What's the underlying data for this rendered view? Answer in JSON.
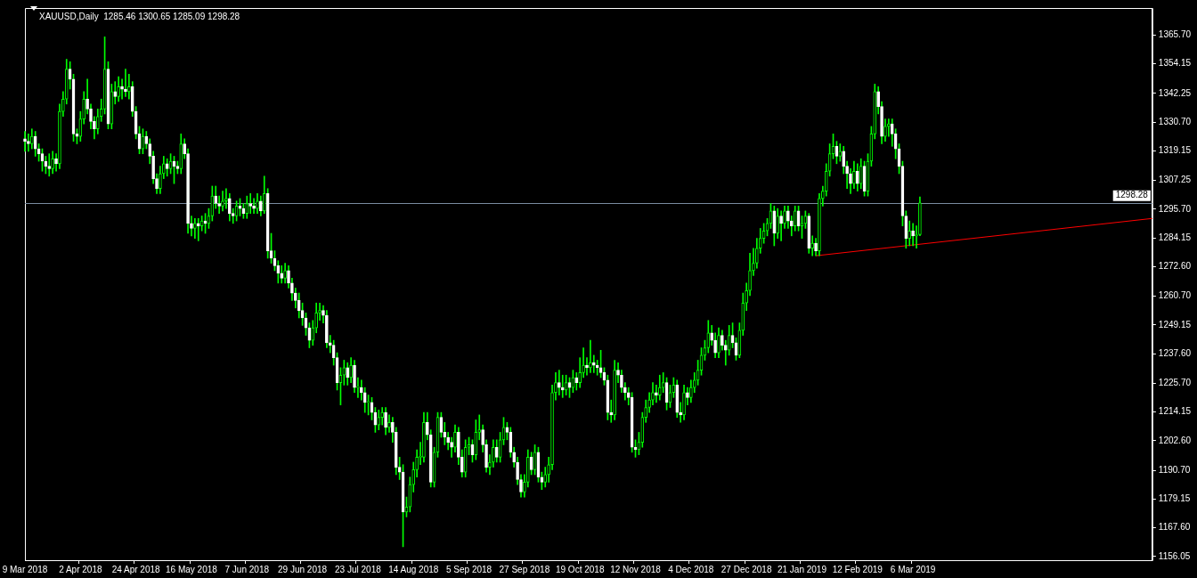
{
  "chart_data": {
    "type": "candlestick",
    "title": "XAUUSD,Daily  1285.46 1300.65 1285.09 1298.28",
    "color": "#00ff00",
    "colors": [
      "#ffffff",
      "#ffffff",
      "#00ff00",
      "#ffffff",
      "#ffffff",
      "#ffffff",
      "#ffffff",
      "#ffffff",
      "#00ff00",
      "#ffffff",
      "#00ff00",
      "#00ff00",
      "#00ff00",
      "#ffffff",
      "#ffffff",
      "#ffffff",
      "#00ff00",
      "#00ff00",
      "#ffffff",
      "#ffffff",
      "#ffffff",
      "#00ff00",
      "#00ff00",
      "#00ff00",
      "#ffffff",
      "#00ff00",
      "#ffffff",
      "#00ff00",
      "#ffffff",
      "#ffffff",
      "#00ff00",
      "#ffffff",
      "#ffffff",
      "#ffffff",
      "#00ff00",
      "#ffffff",
      "#ffffff",
      "#ffffff",
      "#ffffff",
      "#00ff00",
      "#00ff00",
      "#ffffff",
      "#00ff00",
      "#ffffff",
      "#ffffff",
      "#00ff00",
      "#ffffff",
      "#ffffff",
      "#ffffff",
      "#00ff00",
      "#ffffff",
      "#00ff00",
      "#ffffff",
      "#00ff00",
      "#00ff00",
      "#ffffff",
      "#ffffff",
      "#00ff00",
      "#00ff00",
      "#ffffff",
      "#ffffff",
      "#00ff00",
      "#ffffff",
      "#ffffff",
      "#00ff00",
      "#ffffff",
      "#ffffff",
      "#00ff00",
      "#ffffff",
      "#00ff00",
      "#ffffff",
      "#ffffff",
      "#ffffff",
      "#ffffff",
      "#ffffff",
      "#00ff00",
      "#ffffff",
      "#ffffff",
      "#ffffff",
      "#ffffff",
      "#ffffff",
      "#ffffff",
      "#ffffff",
      "#00ff00",
      "#00ff00",
      "#00ff00",
      "#ffffff",
      "#ffffff",
      "#ffffff",
      "#ffffff",
      "#ffffff",
      "#00ff00",
      "#00ff00",
      "#ffffff",
      "#00ff00",
      "#ffffff",
      "#00ff00",
      "#ffffff",
      "#ffffff",
      "#00ff00",
      "#ffffff",
      "#ffffff",
      "#00ff00",
      "#00ff00",
      "#ffffff",
      "#00ff00",
      "#ffffff",
      "#ffffff",
      "#ffffff",
      "#ffffff",
      "#00ff00",
      "#00ff00",
      "#00ff00",
      "#00ff00",
      "#00ff00",
      "#00ff00",
      "#ffffff",
      "#ffffff",
      "#00ff00",
      "#00ff00",
      "#ffffff",
      "#ffffff",
      "#ffffff",
      "#ffffff",
      "#00ff00",
      "#ffffff",
      "#ffffff",
      "#00ff00",
      "#00ff00",
      "#ffffff",
      "#00ff00",
      "#00ff00",
      "#ffffff",
      "#ffffff",
      "#00ff00",
      "#00ff00",
      "#ffffff",
      "#00ff00",
      "#00ff00",
      "#ffffff",
      "#ffffff",
      "#ffffff",
      "#ffffff",
      "#ffffff",
      "#00ff00",
      "#00ff00",
      "#ffffff",
      "#00ff00",
      "#ffffff",
      "#ffffff",
      "#00ff00",
      "#00ff00",
      "#00ff00",
      "#00ff00",
      "#ffffff",
      "#ffffff",
      "#00ff00",
      "#ffffff",
      "#00ff00",
      "#ffffff",
      "#00ff00",
      "#00ff00",
      "#ffffff",
      "#00ff00",
      "#ffffff",
      "#ffffff",
      "#ffffff",
      "#ffffff",
      "#ffffff",
      "#ffffff",
      "#00ff00",
      "#ffffff",
      "#ffffff",
      "#ffffff",
      "#ffffff",
      "#ffffff",
      "#ffffff",
      "#00ff00",
      "#00ff00",
      "#00ff00",
      "#00ff00",
      "#00ff00",
      "#ffffff",
      "#00ff00",
      "#00ff00",
      "#ffffff",
      "#00ff00",
      "#00ff00",
      "#ffffff",
      "#ffffff",
      "#00ff00",
      "#ffffff",
      "#00ff00",
      "#00ff00",
      "#00ff00",
      "#00ff00",
      "#00ff00",
      "#00ff00",
      "#ffffff",
      "#ffffff",
      "#00ff00",
      "#ffffff",
      "#ffffff",
      "#00ff00",
      "#ffffff",
      "#ffffff",
      "#00ff00",
      "#00ff00",
      "#00ff00",
      "#00ff00",
      "#00ff00",
      "#00ff00",
      "#00ff00",
      "#00ff00",
      "#00ff00",
      "#00ff00",
      "#ffffff",
      "#00ff00",
      "#ffffff",
      "#00ff00",
      "#ffffff",
      "#ffffff",
      "#00ff00",
      "#ffffff",
      "#00ff00",
      "#00ff00",
      "#ffffff",
      "#00ff00",
      "#ffffff",
      "#00ff00",
      "#00ff00",
      "#00ff00",
      "#00ff00",
      "#00ff00",
      "#ffffff",
      "#00ff00",
      "#ffffff",
      "#ffffff",
      "#ffffff",
      "#00ff00",
      "#ffffff",
      "#00ff00",
      "#ffffff",
      "#00ff00",
      "#00ff00",
      "#00ff00",
      "#ffffff",
      "#ffffff",
      "#00ff00",
      "#00ff00",
      "#ffffff",
      "#ffffff",
      "#ffffff",
      "#ffffff",
      "#ffffff",
      "#00ff00",
      "#ffffff",
      "#00ff00",
      "#00ff00",
      null,
      null,
      null,
      null,
      null,
      null,
      null,
      null,
      null,
      null,
      null,
      null,
      null,
      null,
      null,
      null,
      null,
      null,
      null,
      null,
      null,
      null,
      null,
      null,
      null,
      null,
      null,
      null,
      null,
      null,
      null,
      null,
      null,
      null,
      null,
      null,
      null,
      null,
      null,
      null,
      null,
      null,
      null,
      null,
      null,
      null,
      null,
      null,
      null,
      null,
      null,
      null,
      null,
      null,
      null,
      null,
      null,
      null,
      null,
      null,
      null,
      null,
      null,
      null,
      null,
      null,
      null
    ],
    "categories": [
      "9 Mar 2018",
      null,
      null,
      null,
      null,
      null,
      null,
      null,
      null,
      null,
      null,
      null,
      null,
      null,
      null,
      null,
      "2 Apr 2018",
      null,
      null,
      null,
      null,
      null,
      null,
      null,
      null,
      null,
      null,
      null,
      null,
      null,
      null,
      null,
      "24 Apr 2018",
      null,
      null,
      null,
      null,
      null,
      null,
      null,
      null,
      null,
      null,
      null,
      null,
      null,
      null,
      null,
      "16 May 2018",
      null,
      null,
      null,
      null,
      null,
      null,
      null,
      null,
      null,
      null,
      null,
      null,
      null,
      null,
      null,
      "7 Jun 2018",
      null,
      null,
      null,
      null,
      null,
      null,
      null,
      null,
      null,
      null,
      null,
      null,
      null,
      null,
      null,
      "29 Jun 2018",
      null,
      null,
      null,
      null,
      null,
      null,
      null,
      null,
      null,
      null,
      null,
      null,
      null,
      null,
      null,
      "23 Jul 2018",
      null,
      null,
      null,
      null,
      null,
      null,
      null,
      null,
      null,
      null,
      null,
      null,
      null,
      null,
      null,
      "14 Aug 2018",
      null,
      null,
      null,
      null,
      null,
      null,
      null,
      null,
      null,
      null,
      null,
      null,
      null,
      null,
      null,
      "5 Sep 2018",
      null,
      null,
      null,
      null,
      null,
      null,
      null,
      null,
      null,
      null,
      null,
      null,
      null,
      null,
      null,
      "27 Sep 2018",
      null,
      null,
      null,
      null,
      null,
      null,
      null,
      null,
      null,
      null,
      null,
      null,
      null,
      null,
      null,
      "19 Oct 2018",
      null,
      null,
      null,
      null,
      null,
      null,
      null,
      null,
      null,
      null,
      null,
      null,
      null,
      null,
      null,
      "12 Nov 2018",
      null,
      null,
      null,
      null,
      null,
      null,
      null,
      null,
      null,
      null,
      null,
      null,
      null,
      null,
      null,
      "4 Dec 2018",
      null,
      null,
      null,
      null,
      null,
      null,
      null,
      null,
      null,
      null,
      null,
      null,
      null,
      null,
      null,
      "27 Dec 2018",
      null,
      null,
      null,
      null,
      null,
      null,
      null,
      null,
      null,
      null,
      null,
      null,
      null,
      null,
      null,
      "21 Jan 2019",
      null,
      null,
      null,
      null,
      null,
      null,
      null,
      null,
      null,
      null,
      null,
      null,
      null,
      null,
      null,
      "12 Feb 2019",
      null,
      null,
      null,
      null,
      null,
      null,
      null,
      null,
      null,
      null,
      null,
      null,
      null,
      null,
      null,
      "6 Mar 2019",
      null,
      null,
      null,
      null,
      null,
      null,
      null,
      null,
      null,
      null,
      null,
      null,
      null,
      null,
      null,
      null,
      null,
      null,
      null,
      null,
      null,
      null,
      null,
      null,
      null,
      null,
      null,
      null,
      null,
      null,
      null,
      null,
      null,
      null,
      null,
      null,
      null,
      null,
      null,
      null,
      null,
      null,
      null,
      null,
      null,
      null,
      null,
      null,
      null,
      null,
      null,
      null,
      null,
      null,
      null,
      null,
      null,
      null,
      null,
      null,
      null,
      null,
      null,
      null,
      null,
      null,
      null,
      null,
      null
    ],
    "ohlc": [
      [
        1324,
        1327,
        1319,
        1323
      ],
      [
        1323,
        1326,
        1319,
        1322
      ],
      [
        1322,
        1328,
        1320,
        1325
      ],
      [
        1325,
        1327,
        1317,
        1320
      ],
      [
        1320,
        1322,
        1315,
        1318
      ],
      [
        1318,
        1320,
        1311,
        1315
      ],
      [
        1315,
        1317,
        1310,
        1313
      ],
      [
        1313,
        1318,
        1309,
        1312
      ],
      [
        1312,
        1319,
        1310,
        1316
      ],
      [
        1316,
        1318,
        1311,
        1314
      ],
      [
        1314,
        1338,
        1312,
        1335
      ],
      [
        1335,
        1343,
        1333,
        1340
      ],
      [
        1340,
        1356,
        1338,
        1352
      ],
      [
        1352,
        1355,
        1344,
        1348
      ],
      [
        1348,
        1350,
        1323,
        1326
      ],
      [
        1326,
        1328,
        1322,
        1325
      ],
      [
        1325,
        1335,
        1323,
        1332
      ],
      [
        1332,
        1343,
        1330,
        1340
      ],
      [
        1340,
        1348,
        1334,
        1336
      ],
      [
        1336,
        1338,
        1328,
        1331
      ],
      [
        1331,
        1333,
        1324,
        1328
      ],
      [
        1328,
        1336,
        1326,
        1333
      ],
      [
        1333,
        1340,
        1331,
        1336
      ],
      [
        1336,
        1365,
        1334,
        1352
      ],
      [
        1352,
        1355,
        1328,
        1330
      ],
      [
        1330,
        1346,
        1328,
        1343
      ],
      [
        1343,
        1347,
        1338,
        1341
      ],
      [
        1341,
        1349,
        1339,
        1345
      ],
      [
        1345,
        1348,
        1340,
        1344
      ],
      [
        1344,
        1352,
        1341,
        1343
      ],
      [
        1343,
        1350,
        1340,
        1345
      ],
      [
        1345,
        1347,
        1333,
        1335
      ],
      [
        1335,
        1337,
        1324,
        1326
      ],
      [
        1326,
        1329,
        1318,
        1320
      ],
      [
        1320,
        1328,
        1318,
        1325
      ],
      [
        1325,
        1327,
        1320,
        1322
      ],
      [
        1322,
        1324,
        1314,
        1317
      ],
      [
        1317,
        1319,
        1306,
        1308
      ],
      [
        1308,
        1310,
        1302,
        1304
      ],
      [
        1304,
        1313,
        1302,
        1310
      ],
      [
        1310,
        1317,
        1308,
        1314
      ],
      [
        1314,
        1316,
        1309,
        1312
      ],
      [
        1312,
        1318,
        1310,
        1315
      ],
      [
        1315,
        1317,
        1306,
        1313
      ],
      [
        1313,
        1315,
        1310,
        1312
      ],
      [
        1312,
        1326,
        1310,
        1322
      ],
      [
        1322,
        1324,
        1316,
        1318
      ],
      [
        1318,
        1320,
        1286,
        1290
      ],
      [
        1290,
        1293,
        1285,
        1288
      ],
      [
        1288,
        1292,
        1284,
        1290
      ],
      [
        1290,
        1292,
        1283,
        1289
      ],
      [
        1289,
        1293,
        1287,
        1291
      ],
      [
        1291,
        1294,
        1286,
        1290
      ],
      [
        1290,
        1296,
        1288,
        1293
      ],
      [
        1293,
        1305,
        1291,
        1301
      ],
      [
        1301,
        1305,
        1296,
        1298
      ],
      [
        1298,
        1301,
        1294,
        1297
      ],
      [
        1297,
        1303,
        1295,
        1299
      ],
      [
        1299,
        1304,
        1296,
        1300
      ],
      [
        1300,
        1302,
        1291,
        1294
      ],
      [
        1294,
        1296,
        1290,
        1293
      ],
      [
        1293,
        1299,
        1291,
        1297
      ],
      [
        1297,
        1300,
        1293,
        1296
      ],
      [
        1296,
        1298,
        1292,
        1294
      ],
      [
        1294,
        1301,
        1292,
        1298
      ],
      [
        1298,
        1302,
        1294,
        1297
      ],
      [
        1297,
        1300,
        1294,
        1296
      ],
      [
        1296,
        1302,
        1294,
        1299
      ],
      [
        1299,
        1301,
        1293,
        1295
      ],
      [
        1295,
        1309,
        1294,
        1302
      ],
      [
        1302,
        1304,
        1276,
        1279
      ],
      [
        1279,
        1286,
        1274,
        1276
      ],
      [
        1276,
        1279,
        1271,
        1273
      ],
      [
        1273,
        1275,
        1266,
        1270
      ],
      [
        1270,
        1273,
        1266,
        1268
      ],
      [
        1268,
        1274,
        1266,
        1271
      ],
      [
        1271,
        1273,
        1264,
        1266
      ],
      [
        1266,
        1268,
        1259,
        1262
      ],
      [
        1262,
        1264,
        1256,
        1259
      ],
      [
        1259,
        1262,
        1252,
        1255
      ],
      [
        1255,
        1258,
        1249,
        1252
      ],
      [
        1252,
        1254,
        1245,
        1248
      ],
      [
        1248,
        1250,
        1240,
        1243
      ],
      [
        1243,
        1251,
        1241,
        1248
      ],
      [
        1248,
        1258,
        1246,
        1254
      ],
      [
        1254,
        1258,
        1251,
        1255
      ],
      [
        1255,
        1257,
        1250,
        1253
      ],
      [
        1253,
        1255,
        1240,
        1242
      ],
      [
        1242,
        1245,
        1238,
        1241
      ],
      [
        1241,
        1243,
        1233,
        1236
      ],
      [
        1236,
        1238,
        1223,
        1226
      ],
      [
        1226,
        1232,
        1217,
        1229
      ],
      [
        1229,
        1235,
        1225,
        1232
      ],
      [
        1232,
        1234,
        1225,
        1228
      ],
      [
        1228,
        1236,
        1226,
        1233
      ],
      [
        1233,
        1235,
        1222,
        1224
      ],
      [
        1224,
        1228,
        1220,
        1224
      ],
      [
        1224,
        1227,
        1219,
        1222
      ],
      [
        1222,
        1224,
        1214,
        1218
      ],
      [
        1218,
        1221,
        1213,
        1218
      ],
      [
        1218,
        1220,
        1211,
        1214
      ],
      [
        1214,
        1216,
        1206,
        1209
      ],
      [
        1209,
        1215,
        1207,
        1212
      ],
      [
        1212,
        1216,
        1209,
        1214
      ],
      [
        1214,
        1216,
        1205,
        1208
      ],
      [
        1208,
        1213,
        1206,
        1210
      ],
      [
        1210,
        1212,
        1202,
        1206
      ],
      [
        1206,
        1208,
        1189,
        1192
      ],
      [
        1192,
        1196,
        1187,
        1190
      ],
      [
        1190,
        1193,
        1160,
        1174
      ],
      [
        1174,
        1180,
        1172,
        1176
      ],
      [
        1176,
        1188,
        1174,
        1185
      ],
      [
        1185,
        1194,
        1182,
        1191
      ],
      [
        1191,
        1199,
        1188,
        1196
      ],
      [
        1196,
        1202,
        1193,
        1196
      ],
      [
        1196,
        1214,
        1194,
        1210
      ],
      [
        1210,
        1214,
        1203,
        1205
      ],
      [
        1205,
        1207,
        1184,
        1186
      ],
      [
        1186,
        1200,
        1184,
        1198
      ],
      [
        1198,
        1214,
        1196,
        1212
      ],
      [
        1212,
        1214,
        1204,
        1206
      ],
      [
        1206,
        1210,
        1201,
        1204
      ],
      [
        1204,
        1206,
        1199,
        1202
      ],
      [
        1202,
        1204,
        1196,
        1200
      ],
      [
        1200,
        1209,
        1198,
        1206
      ],
      [
        1206,
        1208,
        1193,
        1196
      ],
      [
        1196,
        1199,
        1188,
        1190
      ],
      [
        1190,
        1203,
        1188,
        1200
      ],
      [
        1200,
        1204,
        1197,
        1201
      ],
      [
        1201,
        1203,
        1194,
        1197
      ],
      [
        1197,
        1211,
        1195,
        1206
      ],
      [
        1206,
        1213,
        1203,
        1207
      ],
      [
        1207,
        1209,
        1198,
        1201
      ],
      [
        1201,
        1203,
        1190,
        1192
      ],
      [
        1192,
        1197,
        1189,
        1194
      ],
      [
        1194,
        1203,
        1192,
        1200
      ],
      [
        1200,
        1203,
        1194,
        1196
      ],
      [
        1196,
        1206,
        1194,
        1203
      ],
      [
        1203,
        1212,
        1201,
        1208
      ],
      [
        1208,
        1210,
        1203,
        1206
      ],
      [
        1206,
        1208,
        1196,
        1198
      ],
      [
        1198,
        1200,
        1192,
        1194
      ],
      [
        1194,
        1196,
        1185,
        1187
      ],
      [
        1187,
        1189,
        1180,
        1182
      ],
      [
        1182,
        1189,
        1180,
        1186
      ],
      [
        1186,
        1199,
        1184,
        1196
      ],
      [
        1196,
        1198,
        1189,
        1191
      ],
      [
        1191,
        1201,
        1189,
        1198
      ],
      [
        1198,
        1200,
        1186,
        1188
      ],
      [
        1188,
        1190,
        1183,
        1186
      ],
      [
        1186,
        1192,
        1184,
        1189
      ],
      [
        1189,
        1196,
        1186,
        1193
      ],
      [
        1193,
        1225,
        1191,
        1222
      ],
      [
        1222,
        1230,
        1219,
        1226
      ],
      [
        1226,
        1231,
        1221,
        1224
      ],
      [
        1224,
        1229,
        1220,
        1223
      ],
      [
        1223,
        1229,
        1221,
        1226
      ],
      [
        1226,
        1228,
        1220,
        1224
      ],
      [
        1224,
        1231,
        1222,
        1228
      ],
      [
        1228,
        1230,
        1223,
        1226
      ],
      [
        1226,
        1236,
        1224,
        1230
      ],
      [
        1230,
        1240,
        1228,
        1233
      ],
      [
        1233,
        1236,
        1229,
        1232
      ],
      [
        1232,
        1243,
        1230,
        1234
      ],
      [
        1234,
        1237,
        1230,
        1233
      ],
      [
        1233,
        1235,
        1229,
        1232
      ],
      [
        1232,
        1239,
        1228,
        1230
      ],
      [
        1230,
        1232,
        1225,
        1227
      ],
      [
        1227,
        1229,
        1211,
        1214
      ],
      [
        1214,
        1219,
        1210,
        1213
      ],
      [
        1213,
        1235,
        1211,
        1231
      ],
      [
        1231,
        1234,
        1226,
        1229
      ],
      [
        1229,
        1231,
        1222,
        1224
      ],
      [
        1224,
        1226,
        1219,
        1222
      ],
      [
        1222,
        1224,
        1217,
        1220
      ],
      [
        1220,
        1222,
        1198,
        1200
      ],
      [
        1200,
        1203,
        1196,
        1199
      ],
      [
        1199,
        1206,
        1197,
        1202
      ],
      [
        1202,
        1214,
        1200,
        1212
      ],
      [
        1212,
        1219,
        1210,
        1216
      ],
      [
        1216,
        1222,
        1214,
        1219
      ],
      [
        1219,
        1226,
        1217,
        1222
      ],
      [
        1222,
        1225,
        1218,
        1221
      ],
      [
        1221,
        1229,
        1219,
        1224
      ],
      [
        1224,
        1230,
        1222,
        1226
      ],
      [
        1226,
        1228,
        1215,
        1218
      ],
      [
        1218,
        1225,
        1216,
        1222
      ],
      [
        1222,
        1228,
        1220,
        1225
      ],
      [
        1225,
        1227,
        1212,
        1214
      ],
      [
        1214,
        1218,
        1210,
        1213
      ],
      [
        1213,
        1225,
        1211,
        1222
      ],
      [
        1222,
        1224,
        1217,
        1220
      ],
      [
        1220,
        1227,
        1218,
        1224
      ],
      [
        1224,
        1230,
        1222,
        1227
      ],
      [
        1227,
        1235,
        1225,
        1231
      ],
      [
        1231,
        1240,
        1229,
        1237
      ],
      [
        1237,
        1243,
        1235,
        1240
      ],
      [
        1240,
        1251,
        1238,
        1246
      ],
      [
        1246,
        1249,
        1241,
        1243
      ],
      [
        1243,
        1246,
        1236,
        1238
      ],
      [
        1238,
        1248,
        1236,
        1245
      ],
      [
        1245,
        1247,
        1239,
        1241
      ],
      [
        1241,
        1243,
        1233,
        1239
      ],
      [
        1239,
        1249,
        1237,
        1245
      ],
      [
        1245,
        1250,
        1240,
        1242
      ],
      [
        1242,
        1244,
        1235,
        1237
      ],
      [
        1237,
        1250,
        1236,
        1247
      ],
      [
        1247,
        1262,
        1245,
        1258
      ],
      [
        1258,
        1266,
        1255,
        1263
      ],
      [
        1263,
        1278,
        1261,
        1271
      ],
      [
        1271,
        1280,
        1269,
        1274
      ],
      [
        1274,
        1284,
        1272,
        1280
      ],
      [
        1280,
        1288,
        1278,
        1284
      ],
      [
        1284,
        1290,
        1282,
        1287
      ],
      [
        1287,
        1292,
        1285,
        1290
      ],
      [
        1290,
        1298,
        1288,
        1295
      ],
      [
        1295,
        1297,
        1281,
        1286
      ],
      [
        1286,
        1296,
        1284,
        1293
      ],
      [
        1293,
        1295,
        1283,
        1290
      ],
      [
        1290,
        1297,
        1288,
        1295
      ],
      [
        1295,
        1297,
        1288,
        1291
      ],
      [
        1291,
        1293,
        1285,
        1289
      ],
      [
        1289,
        1297,
        1287,
        1295
      ],
      [
        1295,
        1297,
        1287,
        1289
      ],
      [
        1289,
        1293,
        1284,
        1290
      ],
      [
        1290,
        1295,
        1288,
        1293
      ],
      [
        1293,
        1294,
        1278,
        1280
      ],
      [
        1280,
        1285,
        1277,
        1282
      ],
      [
        1282,
        1284,
        1277,
        1279
      ],
      [
        1279,
        1302,
        1277,
        1300
      ],
      [
        1300,
        1305,
        1297,
        1303
      ],
      [
        1303,
        1314,
        1301,
        1311
      ],
      [
        1311,
        1322,
        1309,
        1318
      ],
      [
        1318,
        1326,
        1316,
        1321
      ],
      [
        1321,
        1323,
        1314,
        1317
      ],
      [
        1317,
        1322,
        1315,
        1319
      ],
      [
        1319,
        1321,
        1310,
        1313
      ],
      [
        1313,
        1315,
        1304,
        1310
      ],
      [
        1310,
        1312,
        1302,
        1306
      ],
      [
        1306,
        1315,
        1304,
        1311
      ],
      [
        1311,
        1314,
        1303,
        1306
      ],
      [
        1306,
        1316,
        1304,
        1313
      ],
      [
        1313,
        1315,
        1301,
        1303
      ],
      [
        1303,
        1318,
        1301,
        1315
      ],
      [
        1315,
        1329,
        1313,
        1326
      ],
      [
        1326,
        1346,
        1324,
        1343
      ],
      [
        1343,
        1345,
        1334,
        1337
      ],
      [
        1337,
        1339,
        1322,
        1325
      ],
      [
        1325,
        1332,
        1323,
        1329
      ],
      [
        1329,
        1332,
        1325,
        1330
      ],
      [
        1330,
        1332,
        1321,
        1326
      ],
      [
        1326,
        1328,
        1316,
        1320
      ],
      [
        1320,
        1322,
        1310,
        1313
      ],
      [
        1313,
        1315,
        1289,
        1293
      ],
      [
        1293,
        1295,
        1280,
        1284
      ],
      [
        1284,
        1291,
        1281,
        1287
      ],
      [
        1287,
        1290,
        1281,
        1285
      ],
      [
        1285,
        1289,
        1280,
        1285.46
      ],
      [
        1285.46,
        1300.65,
        1285.09,
        1298.28
      ],
      null,
      null,
      null,
      null,
      null,
      null,
      null,
      null,
      null,
      null,
      null,
      null,
      null,
      null,
      null,
      null,
      null,
      null,
      null,
      null,
      null,
      null,
      null,
      null,
      null,
      null,
      null,
      null,
      null,
      null,
      null,
      null,
      null,
      null,
      null,
      null,
      null,
      null,
      null,
      null,
      null,
      null,
      null,
      null,
      null,
      null,
      null,
      null,
      null,
      null,
      null,
      null,
      null,
      null,
      null,
      null,
      null,
      null,
      null,
      null,
      null,
      null,
      null,
      null,
      null,
      null,
      null
    ],
    "series": [
      {
        "type": "line",
        "color": "#ff0000",
        "values": [
          null,
          null,
          null,
          null,
          null,
          null,
          null,
          null,
          null,
          null,
          null,
          null,
          null,
          null,
          null,
          null,
          null,
          null,
          null,
          null,
          null,
          null,
          null,
          null,
          null,
          null,
          null,
          null,
          null,
          null,
          null,
          null,
          null,
          null,
          null,
          null,
          null,
          null,
          null,
          null,
          null,
          null,
          null,
          null,
          null,
          null,
          null,
          null,
          null,
          null,
          null,
          null,
          null,
          null,
          null,
          null,
          null,
          null,
          null,
          null,
          null,
          null,
          null,
          null,
          null,
          null,
          null,
          null,
          null,
          null,
          null,
          null,
          null,
          null,
          null,
          null,
          null,
          null,
          null,
          null,
          null,
          null,
          null,
          null,
          null,
          null,
          null,
          null,
          null,
          null,
          null,
          null,
          null,
          null,
          null,
          null,
          null,
          null,
          null,
          null,
          null,
          null,
          null,
          null,
          null,
          null,
          null,
          null,
          null,
          null,
          null,
          null,
          null,
          null,
          null,
          null,
          null,
          null,
          null,
          null,
          null,
          null,
          null,
          null,
          null,
          null,
          null,
          null,
          null,
          null,
          null,
          null,
          null,
          null,
          null,
          null,
          null,
          null,
          null,
          null,
          null,
          null,
          null,
          null,
          null,
          null,
          null,
          null,
          null,
          null,
          null,
          null,
          null,
          null,
          null,
          null,
          null,
          null,
          null,
          null,
          null,
          null,
          null,
          null,
          null,
          null,
          null,
          null,
          null,
          null,
          null,
          null,
          null,
          null,
          null,
          null,
          null,
          null,
          null,
          null,
          null,
          null,
          null,
          null,
          null,
          null,
          null,
          null,
          null,
          null,
          null,
          null,
          null,
          null,
          null,
          null,
          null,
          null,
          null,
          null,
          null,
          null,
          null,
          null,
          null,
          null,
          null,
          null,
          null,
          null,
          null,
          null,
          null,
          null,
          null,
          null,
          null,
          null,
          null,
          null,
          null,
          null,
          null,
          null,
          null,
          null,
          null,
          null,
          1277,
          null,
          null,
          null,
          null,
          null,
          null,
          null,
          null,
          null,
          null,
          null,
          null,
          null,
          null,
          null,
          null,
          null,
          null,
          null,
          null,
          null,
          null,
          null,
          null,
          null,
          null,
          null,
          null,
          null,
          null,
          null,
          null,
          null,
          null,
          null,
          null,
          null,
          null,
          null,
          null,
          null,
          null,
          null,
          null,
          null,
          null,
          null,
          null,
          null,
          null,
          null,
          null,
          null,
          null,
          null,
          null,
          null,
          null,
          null,
          null,
          null,
          null,
          null,
          null,
          null,
          null,
          null,
          null,
          null,
          null,
          null,
          null,
          null,
          null,
          null,
          null,
          null,
          null,
          null,
          null,
          null,
          null,
          null,
          null,
          null,
          null,
          null,
          null,
          null,
          null,
          null,
          null,
          null,
          null,
          null,
          null,
          1292
        ]
      }
    ],
    "ref_lines": [
      {
        "axis": "y",
        "value": 1298.28,
        "label": "1298.28",
        "color": "#7a8ba0"
      }
    ],
    "ylim": [
      1154.6,
      1376.6
    ],
    "yticks": [
      {
        "value": 1156.05,
        "label": "1156.05"
      },
      {
        "value": 1167.6,
        "label": "1167.60"
      },
      {
        "value": 1179.15,
        "label": "1179.15"
      },
      {
        "value": 1190.7,
        "label": "1190.70"
      },
      {
        "value": 1202.6,
        "label": "1202.60"
      },
      {
        "value": 1214.15,
        "label": "1214.15"
      },
      {
        "value": 1225.7,
        "label": "1225.70"
      },
      {
        "value": 1237.6,
        "label": "1237.60"
      },
      {
        "value": 1249.15,
        "label": "1249.15"
      },
      {
        "value": 1260.7,
        "label": "1260.70"
      },
      {
        "value": 1272.6,
        "label": "1272.60"
      },
      {
        "value": 1284.15,
        "label": "1284.15"
      },
      {
        "value": 1295.7,
        "label": "1295.70"
      },
      {
        "value": 1307.25,
        "label": "1307.25"
      },
      {
        "value": 1319.15,
        "label": "1319.15"
      },
      {
        "value": 1330.7,
        "label": "1330.70"
      },
      {
        "value": 1342.25,
        "label": "1342.25"
      },
      {
        "value": 1354.15,
        "label": "1354.15"
      },
      {
        "value": 1365.7,
        "label": "1365.70"
      }
    ],
    "grid": false,
    "legend": false,
    "marker": "none",
    "line_style": "solid"
  }
}
